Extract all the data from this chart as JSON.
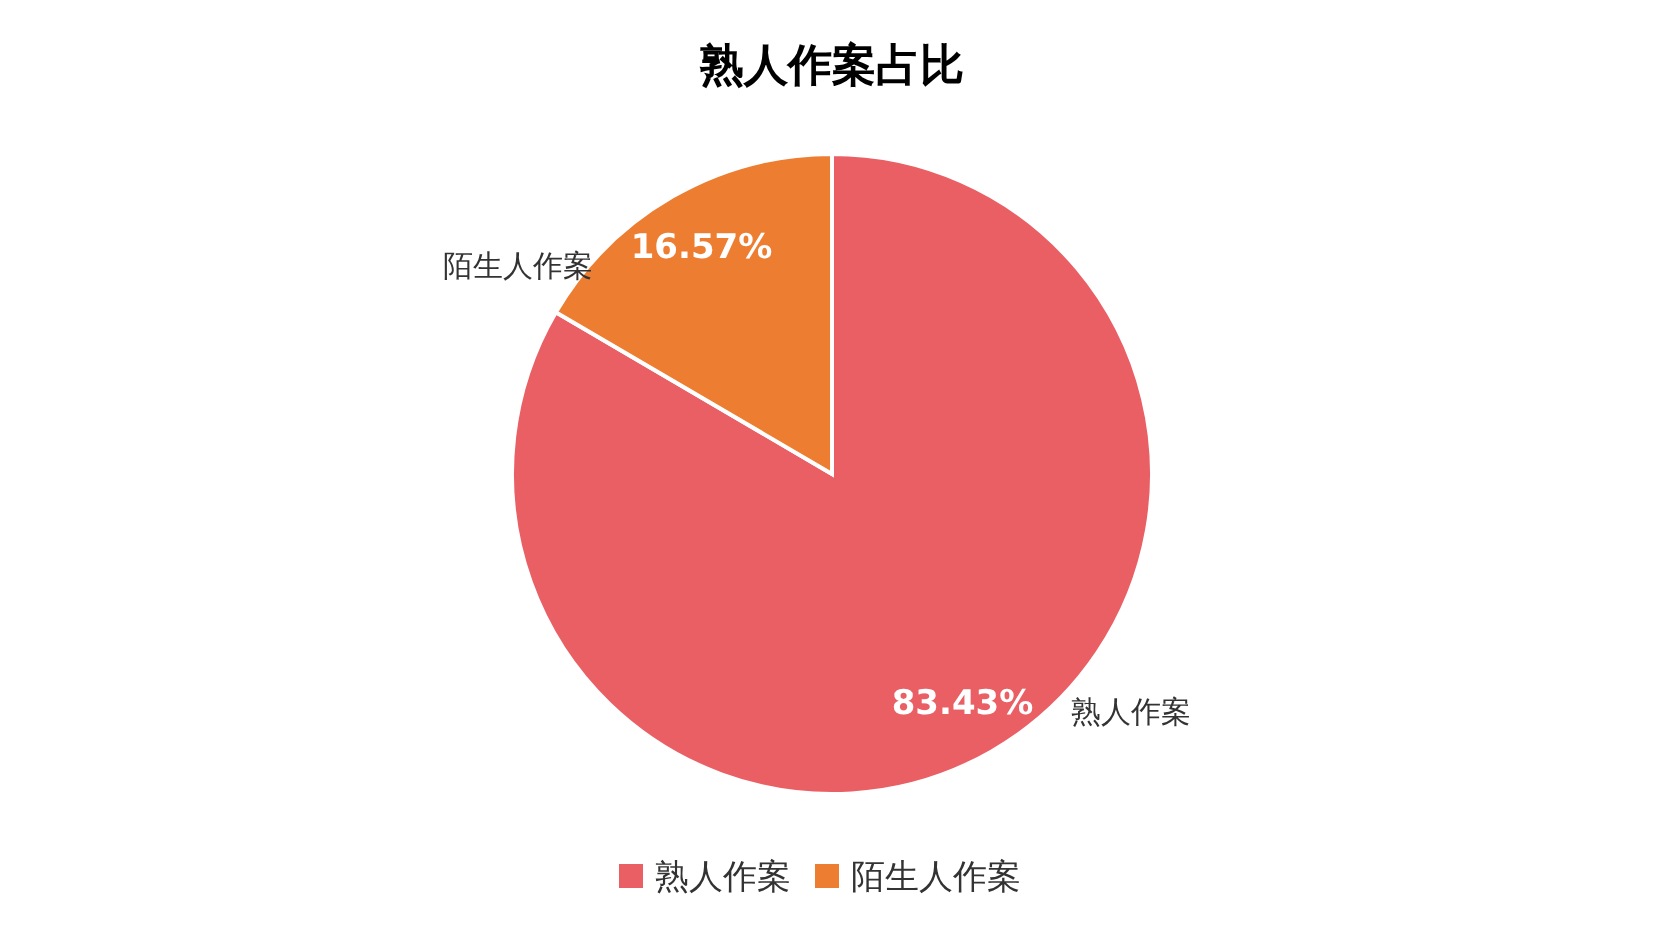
{
  "chart_data": {
    "type": "pie",
    "title": "熟人作案占比",
    "categories": [
      "熟人作案",
      "陌生人作案"
    ],
    "values": [
      83.43,
      16.57
    ],
    "colors": [
      "#e95f64",
      "#ed7d31"
    ],
    "value_labels": [
      "83.43%",
      "16.57%"
    ],
    "legend": "bottom"
  }
}
